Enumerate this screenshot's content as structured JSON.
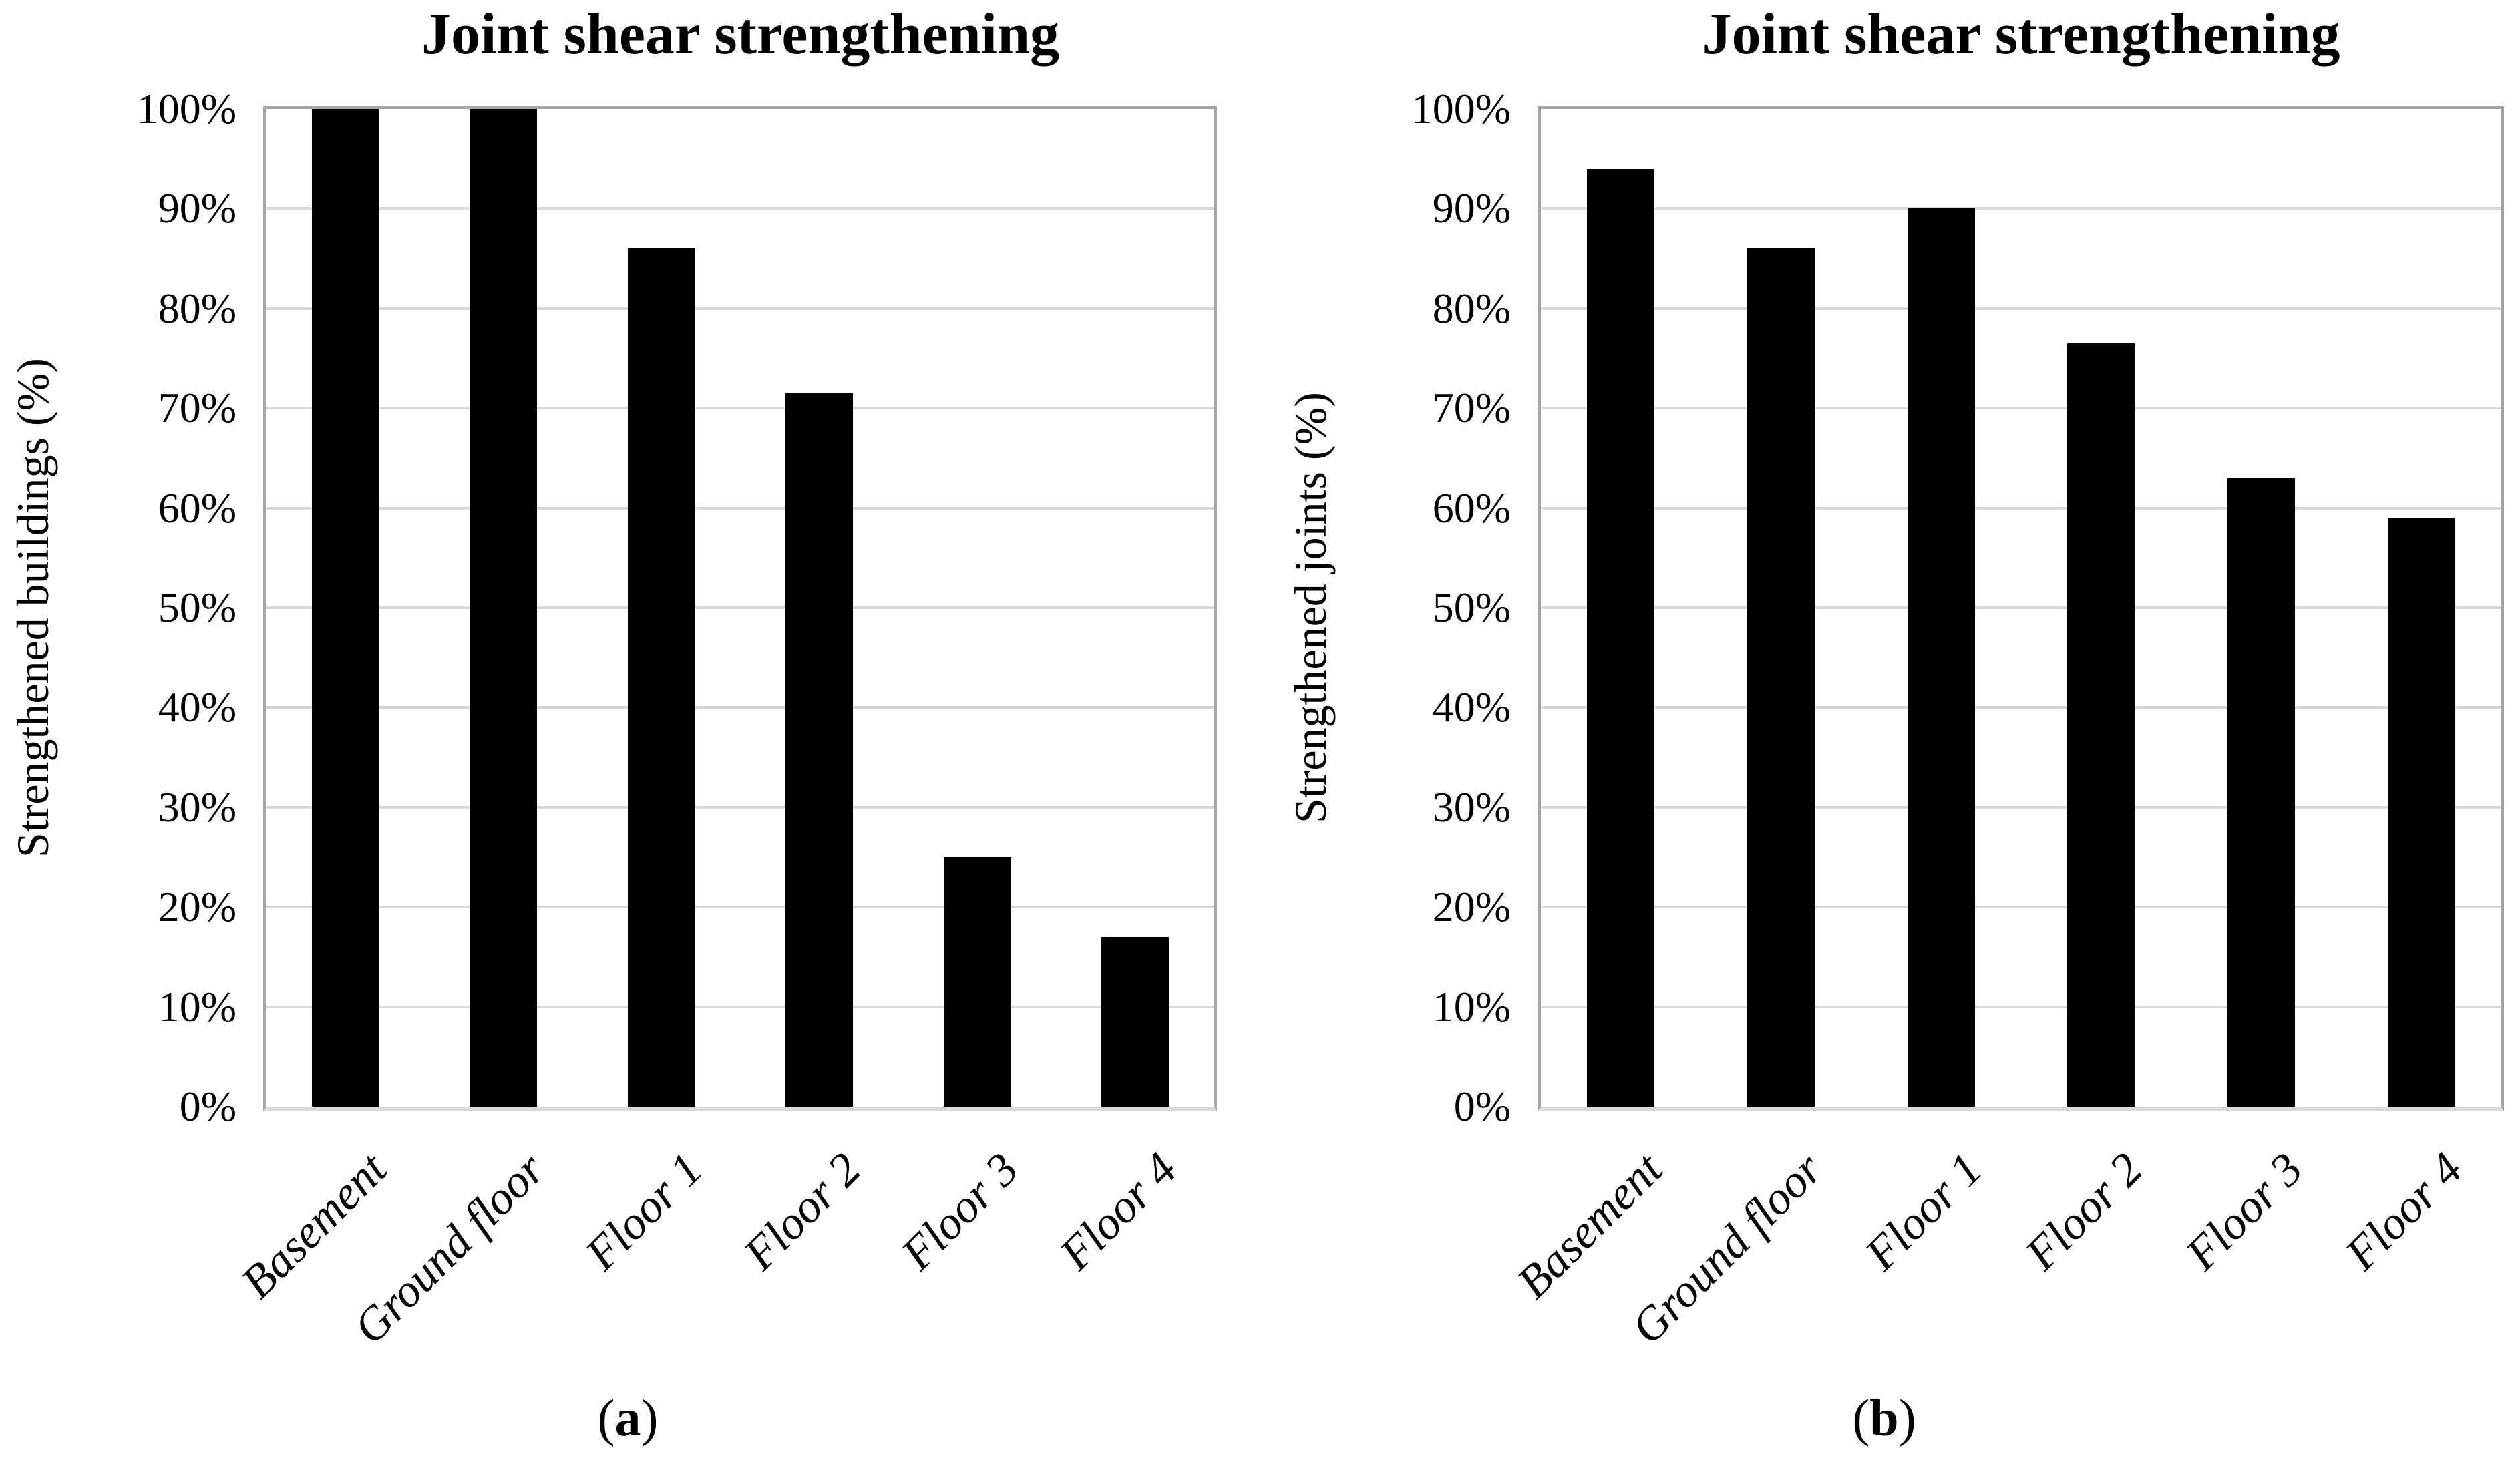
{
  "figure": {
    "background": "#ffffff",
    "colors": {
      "bar": "#000000",
      "gridline": "#d9d9d9",
      "plot_border": "#a6a6a6",
      "axis_baseline": "#d9d9d9",
      "text": "#000000"
    },
    "captions": [
      {
        "open": "(",
        "letter": "a",
        "close": ")"
      },
      {
        "open": "(",
        "letter": "b",
        "close": ")"
      }
    ]
  },
  "chart_data": [
    {
      "type": "bar",
      "title": "Joint shear strengthening",
      "xlabel": "",
      "ylabel": "Strengthened buildings (%)",
      "categories": [
        "Basement",
        "Ground floor",
        "Floor 1",
        "Floor 2",
        "Floor 3",
        "Floor 4"
      ],
      "values": [
        100,
        100,
        86,
        71.5,
        25,
        17
      ],
      "unit": "%",
      "ylim": [
        0,
        100
      ],
      "y_tick_step": 10,
      "y_tick_labels": [
        "0%",
        "10%",
        "20%",
        "30%",
        "40%",
        "50%",
        "60%",
        "70%",
        "80%",
        "90%",
        "100%"
      ],
      "grid": "horizontal",
      "legend": "none",
      "panel_label": "(a)",
      "bar_color": "#000000"
    },
    {
      "type": "bar",
      "title": "Joint shear strengthening",
      "xlabel": "",
      "ylabel": "Strengthened joints (%)",
      "categories": [
        "Basement",
        "Ground floor",
        "Floor 1",
        "Floor 2",
        "Floor 3",
        "Floor 4"
      ],
      "values": [
        94,
        86,
        90,
        76.5,
        63,
        59
      ],
      "unit": "%",
      "ylim": [
        0,
        100
      ],
      "y_tick_step": 10,
      "y_tick_labels": [
        "0%",
        "10%",
        "20%",
        "30%",
        "40%",
        "50%",
        "60%",
        "70%",
        "80%",
        "90%",
        "100%"
      ],
      "grid": "horizontal",
      "legend": "none",
      "panel_label": "(b)",
      "bar_color": "#000000"
    }
  ]
}
